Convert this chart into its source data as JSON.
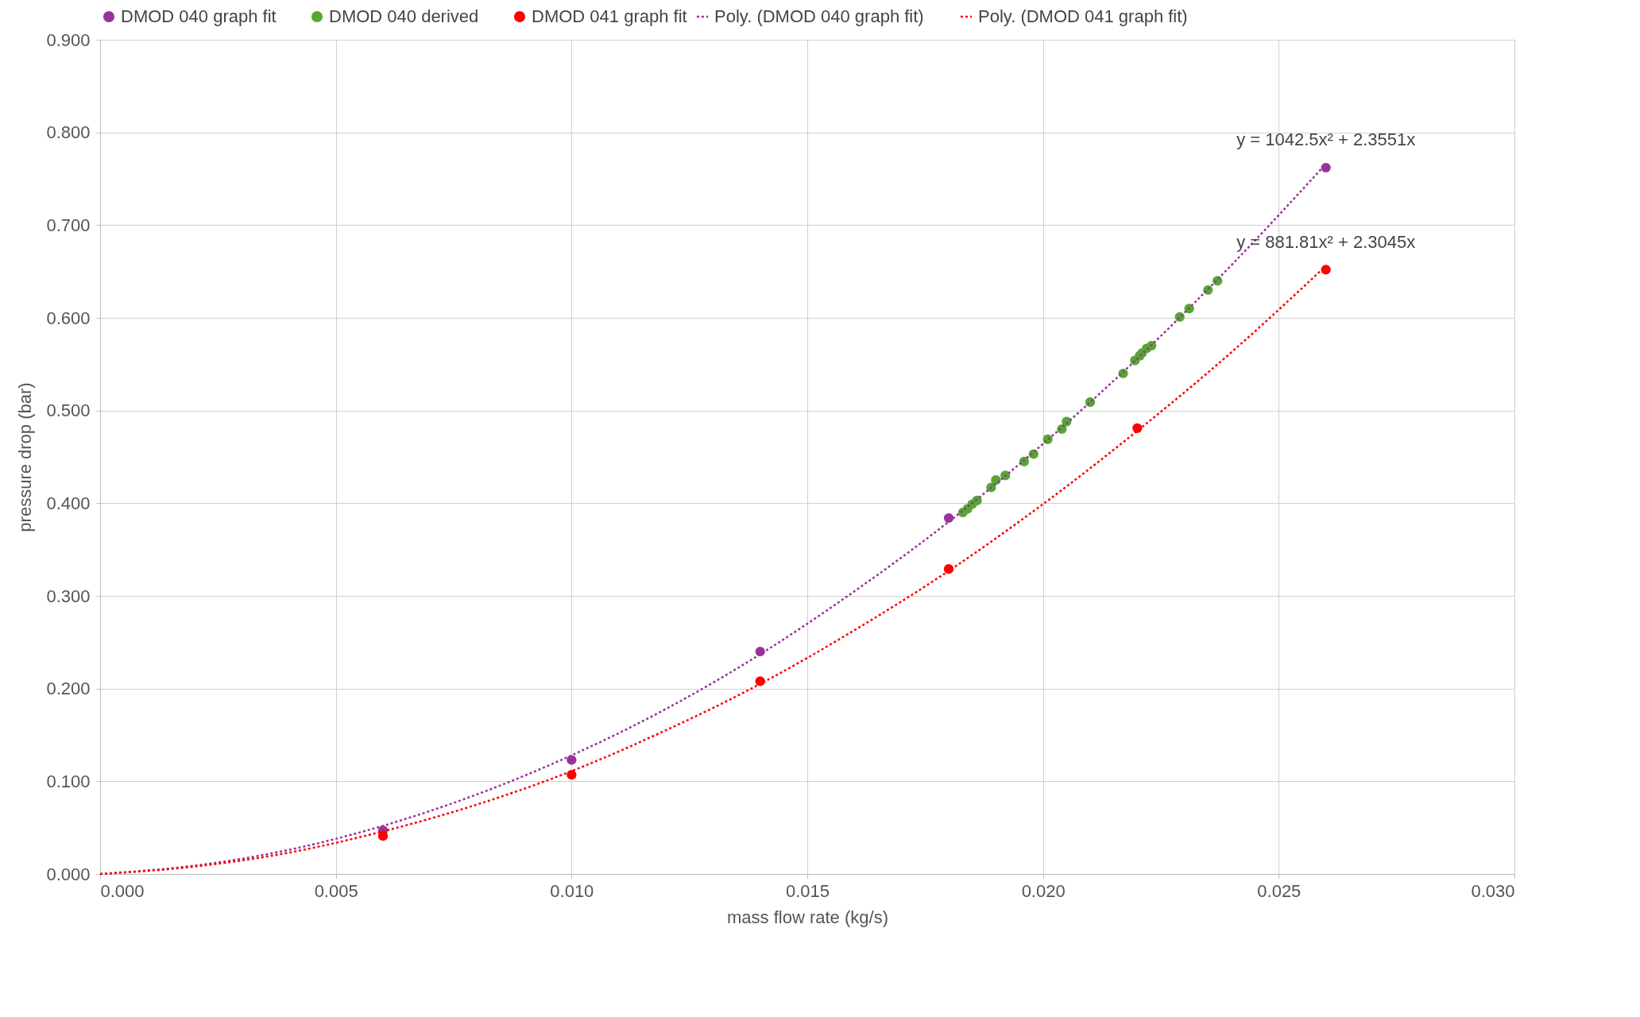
{
  "chart_data": {
    "type": "scatter",
    "xlabel": "mass flow rate (kg/s)",
    "ylabel": "pressure drop (bar)",
    "xlim": [
      0,
      0.03
    ],
    "xticks": [
      {
        "value": 0,
        "label": "0.000"
      },
      {
        "value": 0.005,
        "label": "0.005"
      },
      {
        "value": 0.01,
        "label": "0.010"
      },
      {
        "value": 0.015,
        "label": "0.015"
      },
      {
        "value": 0.02,
        "label": "0.020"
      },
      {
        "value": 0.025,
        "label": "0.025"
      },
      {
        "value": 0.03,
        "label": "0.030"
      }
    ],
    "ylim": [
      0,
      0.9
    ],
    "yticks": [
      {
        "value": 0,
        "label": "0.000"
      },
      {
        "value": 0.1,
        "label": "0.100"
      },
      {
        "value": 0.2,
        "label": "0.200"
      },
      {
        "value": 0.3,
        "label": "0.300"
      },
      {
        "value": 0.4,
        "label": "0.400"
      },
      {
        "value": 0.5,
        "label": "0.500"
      },
      {
        "value": 0.6,
        "label": "0.600"
      },
      {
        "value": 0.7,
        "label": "0.700"
      },
      {
        "value": 0.8,
        "label": "0.800"
      },
      {
        "value": 0.9,
        "label": "0.900"
      }
    ],
    "grid": true,
    "legend": "top",
    "marker": "circle",
    "series": [
      {
        "name": "DMOD 040 graph fit",
        "color": "#993399",
        "x": [
          0.006,
          0.01,
          0.014,
          0.018,
          0.026
        ],
        "values": [
          0.047,
          0.123,
          0.24,
          0.384,
          0.762
        ]
      },
      {
        "name": "DMOD 040 derived",
        "color": "#55a830",
        "x": [
          0.0183,
          0.0184,
          0.0185,
          0.0186,
          0.0189,
          0.019,
          0.0192,
          0.0196,
          0.0198,
          0.0201,
          0.0204,
          0.0205,
          0.021,
          0.0217,
          0.02195,
          0.02205,
          0.0221,
          0.0222,
          0.0223,
          0.0229,
          0.0231,
          0.0235,
          0.0237
        ],
        "values": [
          0.39,
          0.394,
          0.399,
          0.403,
          0.417,
          0.425,
          0.43,
          0.445,
          0.453,
          0.469,
          0.48,
          0.488,
          0.509,
          0.54,
          0.554,
          0.559,
          0.562,
          0.567,
          0.57,
          0.601,
          0.61,
          0.63,
          0.64
        ]
      },
      {
        "name": "DMOD 041 graph fit",
        "color": "#ff0000",
        "x": [
          0.006,
          0.01,
          0.014,
          0.018,
          0.022,
          0.026
        ],
        "values": [
          0.041,
          0.107,
          0.208,
          0.329,
          0.481,
          0.652
        ]
      },
      {
        "name": "Poly. (DMOD 040 graph fit)",
        "type": "line",
        "marker": "none",
        "line_style": "dotted",
        "color": "#993399",
        "x": [
          0,
          0.002,
          0.004,
          0.006,
          0.008,
          0.01,
          0.012,
          0.014,
          0.016,
          0.018,
          0.02,
          0.022,
          0.024,
          0.026
        ],
        "values": [
          0,
          0.009,
          0.026,
          0.052,
          0.086,
          0.128,
          0.178,
          0.237,
          0.305,
          0.38,
          0.464,
          0.556,
          0.657,
          0.766
        ]
      },
      {
        "name": "Poly. (DMOD 041 graph fit)",
        "type": "line",
        "marker": "none",
        "line_style": "dotted",
        "color": "#ff0000",
        "x": [
          0,
          0.002,
          0.004,
          0.006,
          0.008,
          0.01,
          0.012,
          0.014,
          0.016,
          0.018,
          0.02,
          0.022,
          0.024,
          0.026
        ],
        "values": [
          0,
          0.008,
          0.023,
          0.046,
          0.075,
          0.111,
          0.155,
          0.205,
          0.263,
          0.327,
          0.399,
          0.478,
          0.563,
          0.656
        ]
      }
    ],
    "annotations": [
      "y = 1042.5x² + 2.3551x",
      "y = 881.81x² + 2.3045x"
    ]
  }
}
